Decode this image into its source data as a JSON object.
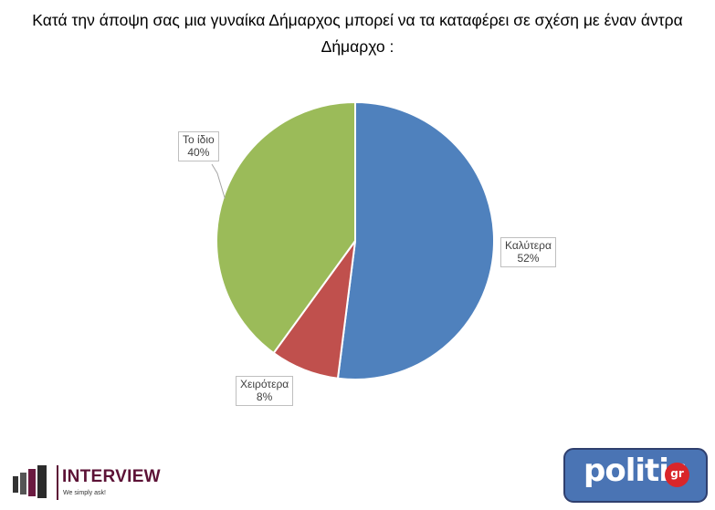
{
  "chart_data": {
    "type": "pie",
    "title": "Κατά την άποψη σας μια γυναίκα Δήμαρχος μπορεί να τα καταφέρει σε σχέση με έναν άντρα Δήμαρχο :",
    "categories": [
      "Καλύτερα",
      "Χειρότερα",
      "Το ίδιο"
    ],
    "values": [
      52,
      8,
      40
    ],
    "value_labels": [
      "52%",
      "8%",
      "40%"
    ],
    "colors": [
      "#4f81bd",
      "#c0504d",
      "#9bbb59"
    ],
    "start_angle_deg": 0,
    "direction": "clockwise",
    "legend": "none"
  },
  "logos": {
    "interview": {
      "name": "INTERVIEW",
      "slogan": "We simply ask!"
    },
    "politic": {
      "word": "politic",
      "suffix": "gr"
    }
  }
}
